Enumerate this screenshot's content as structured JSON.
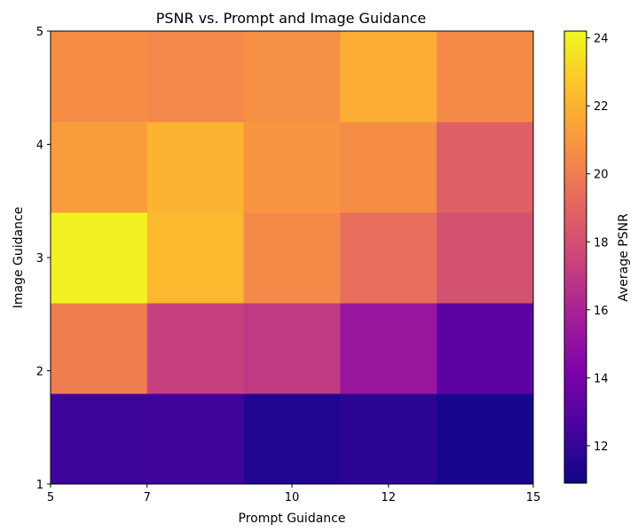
{
  "chart_data": {
    "type": "heatmap",
    "title": "PSNR vs. Prompt and Image Guidance",
    "xlabel": "Prompt Guidance",
    "ylabel": "Image Guidance",
    "x_ticks": [
      5,
      7,
      10,
      12,
      15
    ],
    "y_ticks": [
      1,
      2,
      3,
      4,
      5
    ],
    "xlim": [
      5,
      15
    ],
    "ylim": [
      1,
      5
    ],
    "columns": [
      "5",
      "7",
      "10",
      "12",
      "15"
    ],
    "rows": [
      "1",
      "2",
      "3",
      "4",
      "5"
    ],
    "values": [
      [
        12.2,
        12.3,
        11.5,
        11.7,
        11.2
      ],
      [
        20.0,
        17.3,
        17.0,
        15.3,
        13.2
      ],
      [
        24.0,
        22.2,
        20.5,
        19.4,
        18.1
      ],
      [
        21.2,
        22.0,
        20.9,
        20.6,
        18.8
      ],
      [
        20.6,
        20.4,
        20.7,
        21.8,
        20.5
      ]
    ],
    "colorbar": {
      "label": "Average PSNR",
      "ticks": [
        12,
        14,
        16,
        18,
        20,
        22,
        24
      ],
      "vmin": 10.9,
      "vmax": 24.2,
      "colormap": "plasma"
    },
    "grid": false
  }
}
